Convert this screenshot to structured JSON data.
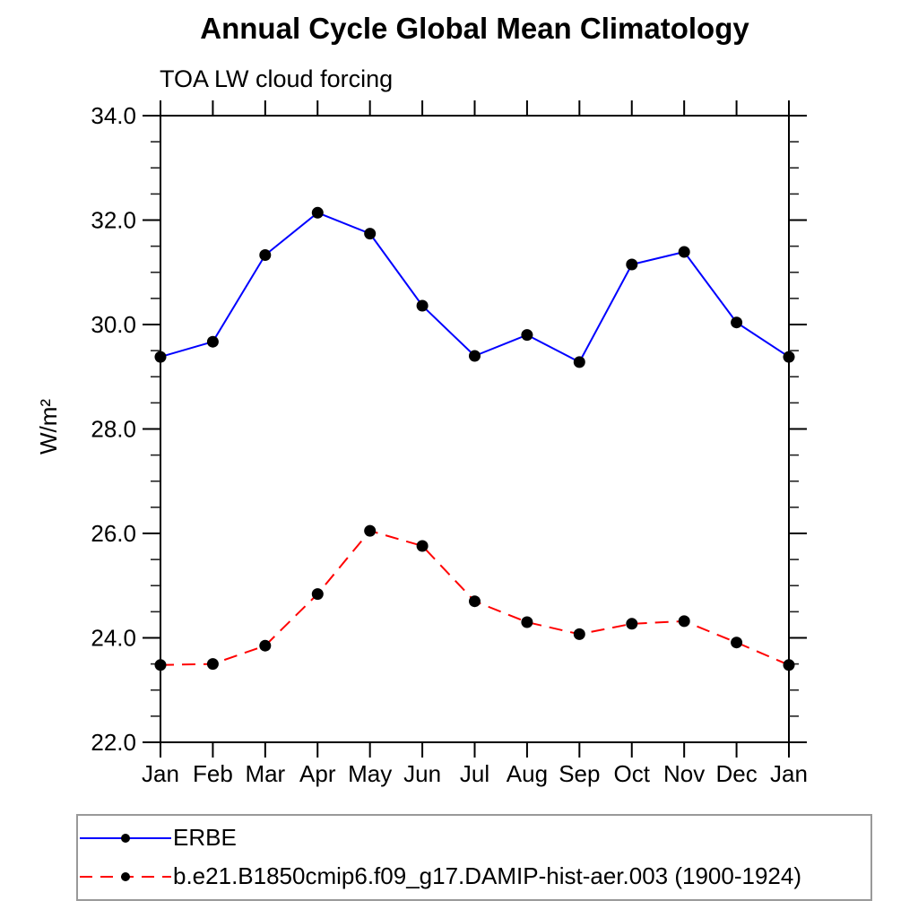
{
  "chart_data": {
    "type": "line",
    "title": "Annual Cycle Global Mean Climatology",
    "subtitle": "TOA LW cloud forcing",
    "ylabel": "W/m²",
    "x_categories": [
      "Jan",
      "Feb",
      "Mar",
      "Apr",
      "May",
      "Jun",
      "Jul",
      "Aug",
      "Sep",
      "Oct",
      "Nov",
      "Dec",
      "Jan"
    ],
    "ylim": [
      22.0,
      34.0
    ],
    "ytick_values": [
      22,
      24,
      26,
      28,
      30,
      32,
      34
    ],
    "ytick_labels": [
      "22.0",
      "24.0",
      "26.0",
      "28.0",
      "30.0",
      "32.0",
      "34.0"
    ],
    "ytick_minor_step": 0.5,
    "grid": false,
    "legend_position": "bottom-left-box",
    "series": [
      {
        "name": "ERBE",
        "color": "#0000ff",
        "line_style": "solid",
        "marker": "filled-circle",
        "marker_color": "#000000",
        "values": [
          29.38,
          29.67,
          31.33,
          32.14,
          31.74,
          30.36,
          29.4,
          29.8,
          29.28,
          31.15,
          31.39,
          30.04,
          29.38
        ]
      },
      {
        "name": "b.e21.B1850cmip6.f09_g17.DAMIP-hist-aer.003 (1900-1924)",
        "color": "#ff0000",
        "line_style": "dashed",
        "marker": "filled-circle",
        "marker_color": "#000000",
        "values": [
          23.48,
          23.5,
          23.85,
          24.84,
          26.05,
          25.76,
          24.7,
          24.3,
          24.07,
          24.27,
          24.32,
          23.91,
          23.48
        ]
      }
    ]
  }
}
